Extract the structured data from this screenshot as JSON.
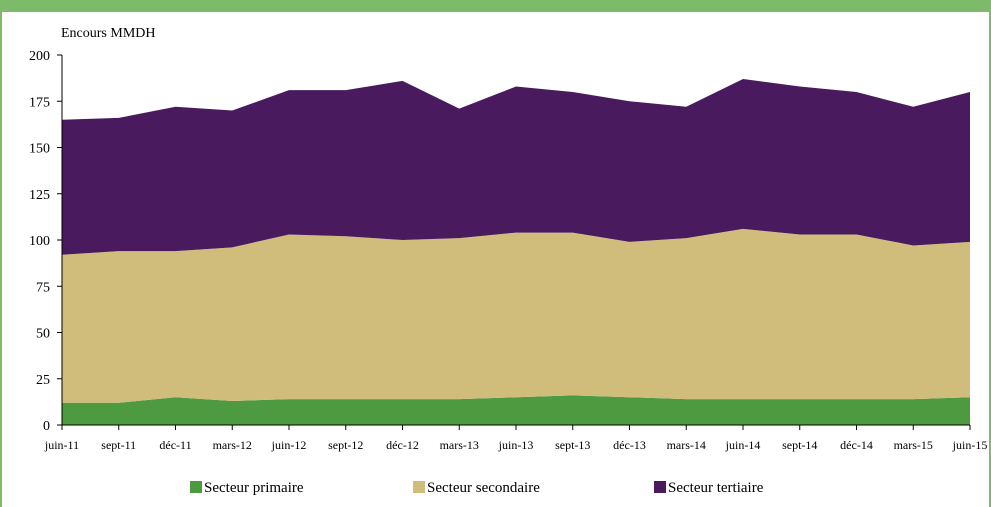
{
  "chart_data": {
    "type": "area",
    "stacked": true,
    "ylabel": "Encours MMDH",
    "ylim": [
      0,
      200
    ],
    "yticks": [
      0,
      25,
      50,
      75,
      100,
      125,
      150,
      175,
      200
    ],
    "categories": [
      "juin-11",
      "sept-11",
      "déc-11",
      "mars-12",
      "juin-12",
      "sept-12",
      "déc-12",
      "mars-13",
      "juin-13",
      "sept-13",
      "déc-13",
      "mars-14",
      "juin-14",
      "sept-14",
      "déc-14",
      "mars-15",
      "juin-15"
    ],
    "series": [
      {
        "name": "Secteur primaire",
        "color": "#4e9a41",
        "values": [
          12,
          12,
          15,
          13,
          14,
          14,
          14,
          14,
          15,
          16,
          15,
          14,
          14,
          14,
          14,
          14,
          15
        ]
      },
      {
        "name": "Secteur secondaire",
        "color": "#d0bd7c",
        "values": [
          80,
          82,
          79,
          83,
          89,
          88,
          86,
          87,
          89,
          88,
          84,
          87,
          92,
          89,
          89,
          83,
          84
        ]
      },
      {
        "name": "Secteur tertiaire",
        "color": "#4a1a5e",
        "values": [
          73,
          72,
          78,
          74,
          78,
          79,
          86,
          70,
          79,
          76,
          76,
          71,
          81,
          80,
          77,
          75,
          81
        ]
      }
    ],
    "legend_position": "bottom",
    "grid": false
  }
}
